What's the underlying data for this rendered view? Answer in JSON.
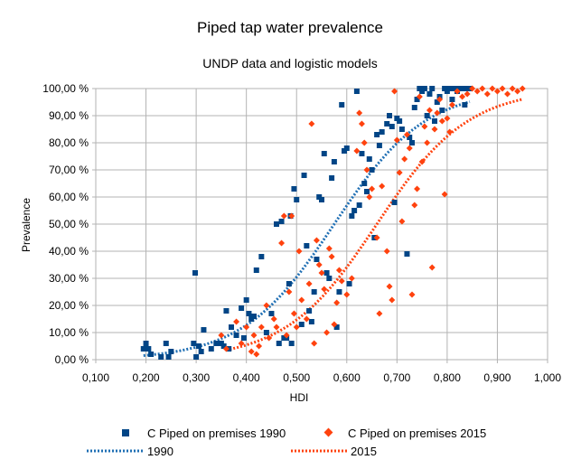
{
  "chart_data": {
    "type": "scatter",
    "title": "Piped tap water prevalence",
    "subtitle": "UNDP data and logistic models",
    "xlabel": "HDI",
    "ylabel": "Prevalence",
    "xlim": [
      0.1,
      1.0
    ],
    "ylim": [
      0,
      100
    ],
    "x_ticks": [
      "0,100",
      "0,200",
      "0,300",
      "0,400",
      "0,500",
      "0,600",
      "0,700",
      "0,800",
      "0,900",
      "1,000"
    ],
    "y_ticks": [
      "0,00 %",
      "10,00 %",
      "20,00 %",
      "30,00 %",
      "40,00 %",
      "50,00 %",
      "60,00 %",
      "70,00 %",
      "80,00 %",
      "90,00 %",
      "100,00 %"
    ],
    "grid": true,
    "legend_position": "bottom",
    "series": [
      {
        "name": "C Piped on premises 1990",
        "marker": "square",
        "color": "#004586",
        "points": [
          [
            0.195,
            4
          ],
          [
            0.2,
            6
          ],
          [
            0.205,
            4
          ],
          [
            0.21,
            2
          ],
          [
            0.23,
            1
          ],
          [
            0.24,
            6
          ],
          [
            0.245,
            1
          ],
          [
            0.25,
            3
          ],
          [
            0.295,
            6
          ],
          [
            0.298,
            32
          ],
          [
            0.3,
            1
          ],
          [
            0.305,
            5
          ],
          [
            0.31,
            3
          ],
          [
            0.315,
            11
          ],
          [
            0.33,
            4
          ],
          [
            0.34,
            6
          ],
          [
            0.35,
            6
          ],
          [
            0.355,
            5
          ],
          [
            0.36,
            18
          ],
          [
            0.365,
            4
          ],
          [
            0.37,
            12
          ],
          [
            0.38,
            9
          ],
          [
            0.39,
            19
          ],
          [
            0.395,
            8
          ],
          [
            0.4,
            22
          ],
          [
            0.405,
            17
          ],
          [
            0.41,
            15
          ],
          [
            0.415,
            16
          ],
          [
            0.42,
            33
          ],
          [
            0.43,
            38
          ],
          [
            0.44,
            10
          ],
          [
            0.45,
            17
          ],
          [
            0.46,
            50
          ],
          [
            0.465,
            6
          ],
          [
            0.47,
            51
          ],
          [
            0.475,
            8
          ],
          [
            0.48,
            8
          ],
          [
            0.485,
            28
          ],
          [
            0.488,
            53
          ],
          [
            0.49,
            6
          ],
          [
            0.495,
            63
          ],
          [
            0.5,
            59
          ],
          [
            0.51,
            13
          ],
          [
            0.515,
            68
          ],
          [
            0.52,
            42
          ],
          [
            0.525,
            18
          ],
          [
            0.53,
            14
          ],
          [
            0.535,
            25
          ],
          [
            0.54,
            37
          ],
          [
            0.545,
            60
          ],
          [
            0.55,
            59
          ],
          [
            0.555,
            76
          ],
          [
            0.56,
            32
          ],
          [
            0.565,
            30
          ],
          [
            0.57,
            67
          ],
          [
            0.575,
            73
          ],
          [
            0.58,
            12
          ],
          [
            0.585,
            25
          ],
          [
            0.59,
            94
          ],
          [
            0.595,
            77
          ],
          [
            0.6,
            78
          ],
          [
            0.605,
            28
          ],
          [
            0.61,
            53
          ],
          [
            0.615,
            55
          ],
          [
            0.62,
            99
          ],
          [
            0.625,
            57
          ],
          [
            0.63,
            76
          ],
          [
            0.635,
            65
          ],
          [
            0.64,
            62
          ],
          [
            0.645,
            74
          ],
          [
            0.65,
            70
          ],
          [
            0.655,
            45
          ],
          [
            0.66,
            83
          ],
          [
            0.665,
            79
          ],
          [
            0.67,
            84
          ],
          [
            0.68,
            87
          ],
          [
            0.685,
            90
          ],
          [
            0.69,
            86
          ],
          [
            0.695,
            58
          ],
          [
            0.7,
            89
          ],
          [
            0.705,
            88
          ],
          [
            0.71,
            85
          ],
          [
            0.72,
            39
          ],
          [
            0.725,
            82
          ],
          [
            0.73,
            80
          ],
          [
            0.735,
            93
          ],
          [
            0.74,
            96
          ],
          [
            0.745,
            100
          ],
          [
            0.75,
            99
          ],
          [
            0.755,
            100
          ],
          [
            0.76,
            90
          ],
          [
            0.765,
            98
          ],
          [
            0.77,
            100
          ],
          [
            0.775,
            88
          ],
          [
            0.78,
            95
          ],
          [
            0.785,
            97
          ],
          [
            0.79,
            92
          ],
          [
            0.795,
            100
          ],
          [
            0.8,
            99
          ],
          [
            0.805,
            100
          ],
          [
            0.81,
            96
          ],
          [
            0.815,
            100
          ],
          [
            0.82,
            99
          ],
          [
            0.825,
            100
          ],
          [
            0.83,
            100
          ],
          [
            0.835,
            94
          ],
          [
            0.84,
            100
          ],
          [
            0.845,
            100
          ]
        ]
      },
      {
        "name": "C Piped on premises 2015",
        "marker": "diamond",
        "color": "#ff420e",
        "points": [
          [
            0.35,
            9
          ],
          [
            0.36,
            4
          ],
          [
            0.38,
            14
          ],
          [
            0.39,
            6
          ],
          [
            0.4,
            12
          ],
          [
            0.41,
            3
          ],
          [
            0.415,
            9
          ],
          [
            0.42,
            2
          ],
          [
            0.425,
            5
          ],
          [
            0.43,
            12
          ],
          [
            0.44,
            20
          ],
          [
            0.445,
            8
          ],
          [
            0.455,
            15
          ],
          [
            0.46,
            12
          ],
          [
            0.47,
            43
          ],
          [
            0.475,
            53
          ],
          [
            0.48,
            9
          ],
          [
            0.485,
            25
          ],
          [
            0.49,
            53
          ],
          [
            0.495,
            17
          ],
          [
            0.5,
            12
          ],
          [
            0.505,
            40
          ],
          [
            0.51,
            22
          ],
          [
            0.52,
            15
          ],
          [
            0.525,
            28
          ],
          [
            0.53,
            87
          ],
          [
            0.535,
            6
          ],
          [
            0.54,
            44
          ],
          [
            0.545,
            35
          ],
          [
            0.55,
            32
          ],
          [
            0.555,
            26
          ],
          [
            0.56,
            10
          ],
          [
            0.565,
            41
          ],
          [
            0.57,
            38
          ],
          [
            0.575,
            13
          ],
          [
            0.58,
            21
          ],
          [
            0.585,
            33
          ],
          [
            0.59,
            29
          ],
          [
            0.6,
            24
          ],
          [
            0.61,
            30
          ],
          [
            0.62,
            77
          ],
          [
            0.625,
            91
          ],
          [
            0.63,
            87
          ],
          [
            0.635,
            80
          ],
          [
            0.64,
            70
          ],
          [
            0.645,
            60
          ],
          [
            0.65,
            63
          ],
          [
            0.66,
            45
          ],
          [
            0.665,
            17
          ],
          [
            0.67,
            64
          ],
          [
            0.68,
            40
          ],
          [
            0.685,
            27
          ],
          [
            0.69,
            22
          ],
          [
            0.695,
            99
          ],
          [
            0.7,
            81
          ],
          [
            0.705,
            69
          ],
          [
            0.71,
            51
          ],
          [
            0.715,
            74
          ],
          [
            0.72,
            83
          ],
          [
            0.725,
            78
          ],
          [
            0.73,
            24
          ],
          [
            0.735,
            57
          ],
          [
            0.74,
            63
          ],
          [
            0.745,
            97
          ],
          [
            0.75,
            73
          ],
          [
            0.755,
            86
          ],
          [
            0.76,
            80
          ],
          [
            0.765,
            92
          ],
          [
            0.77,
            34
          ],
          [
            0.775,
            85
          ],
          [
            0.78,
            91
          ],
          [
            0.785,
            96
          ],
          [
            0.79,
            88
          ],
          [
            0.795,
            61
          ],
          [
            0.8,
            89
          ],
          [
            0.805,
            84
          ],
          [
            0.81,
            94
          ],
          [
            0.82,
            99
          ],
          [
            0.83,
            97
          ],
          [
            0.84,
            98
          ],
          [
            0.85,
            100
          ],
          [
            0.86,
            99
          ],
          [
            0.87,
            100
          ],
          [
            0.88,
            98
          ],
          [
            0.89,
            100
          ],
          [
            0.9,
            99
          ],
          [
            0.91,
            100
          ],
          [
            0.92,
            98
          ],
          [
            0.93,
            100
          ],
          [
            0.94,
            99
          ],
          [
            0.95,
            100
          ]
        ]
      },
      {
        "name": "1990",
        "type": "trendline",
        "style": "dotted",
        "color": "#1f6fb4",
        "model": "logistic",
        "params": {
          "k": 11,
          "x0": 0.575
        },
        "x_range": [
          0.195,
          0.845
        ]
      },
      {
        "name": "2015",
        "type": "trendline",
        "style": "dotted",
        "color": "#ff420e",
        "model": "logistic",
        "params": {
          "k": 11,
          "x0": 0.66
        },
        "x_range": [
          0.36,
          0.95
        ]
      }
    ]
  }
}
